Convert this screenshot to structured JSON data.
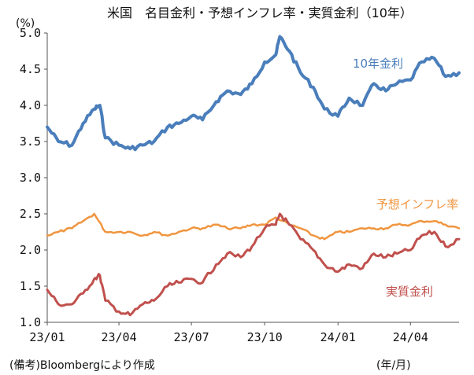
{
  "chart_data": {
    "type": "line",
    "title": "米国　名目金利・予想インフレ率・実質金利（10年）",
    "y_unit": "(%)",
    "x_unit": "(年/月)",
    "note": "(備考)Bloombergにより作成",
    "ylim": [
      1.0,
      5.0
    ],
    "y_ticks": [
      "1.0",
      "1.5",
      "2.0",
      "2.5",
      "3.0",
      "3.5",
      "4.0",
      "4.5",
      "5.0"
    ],
    "x_ticks": [
      "23/01",
      "23/04",
      "23/07",
      "23/10",
      "24/01",
      "24/04"
    ],
    "x_range_months": [
      "2023-01",
      "2024-06"
    ],
    "grid": false,
    "series": [
      {
        "name": "10年金利",
        "color": "#4a7ebb",
        "points": [
          [
            "2023-01-01",
            3.7
          ],
          [
            "2023-01-15",
            3.5
          ],
          [
            "2023-02-01",
            3.45
          ],
          [
            "2023-02-15",
            3.75
          ],
          [
            "2023-03-01",
            3.95
          ],
          [
            "2023-03-08",
            4.0
          ],
          [
            "2023-03-15",
            3.55
          ],
          [
            "2023-04-01",
            3.45
          ],
          [
            "2023-04-15",
            3.4
          ],
          [
            "2023-05-01",
            3.45
          ],
          [
            "2023-05-15",
            3.5
          ],
          [
            "2023-06-01",
            3.7
          ],
          [
            "2023-06-15",
            3.75
          ],
          [
            "2023-07-01",
            3.85
          ],
          [
            "2023-07-15",
            3.8
          ],
          [
            "2023-08-01",
            4.05
          ],
          [
            "2023-08-15",
            4.2
          ],
          [
            "2023-09-01",
            4.15
          ],
          [
            "2023-09-15",
            4.3
          ],
          [
            "2023-10-01",
            4.6
          ],
          [
            "2023-10-15",
            4.7
          ],
          [
            "2023-10-20",
            4.95
          ],
          [
            "2023-11-01",
            4.75
          ],
          [
            "2023-11-15",
            4.45
          ],
          [
            "2023-12-01",
            4.25
          ],
          [
            "2023-12-15",
            3.95
          ],
          [
            "2024-01-01",
            3.85
          ],
          [
            "2024-01-15",
            4.1
          ],
          [
            "2024-02-01",
            4.0
          ],
          [
            "2024-02-15",
            4.3
          ],
          [
            "2024-03-01",
            4.2
          ],
          [
            "2024-03-15",
            4.3
          ],
          [
            "2024-04-01",
            4.35
          ],
          [
            "2024-04-15",
            4.6
          ],
          [
            "2024-05-01",
            4.65
          ],
          [
            "2024-05-15",
            4.4
          ],
          [
            "2024-06-01",
            4.45
          ]
        ]
      },
      {
        "name": "予想インフレ率",
        "color": "#f0953f",
        "points": [
          [
            "2023-01-01",
            2.2
          ],
          [
            "2023-01-15",
            2.25
          ],
          [
            "2023-02-01",
            2.3
          ],
          [
            "2023-02-15",
            2.4
          ],
          [
            "2023-03-01",
            2.5
          ],
          [
            "2023-03-15",
            2.25
          ],
          [
            "2023-04-01",
            2.25
          ],
          [
            "2023-04-15",
            2.25
          ],
          [
            "2023-05-01",
            2.2
          ],
          [
            "2023-05-15",
            2.25
          ],
          [
            "2023-06-01",
            2.2
          ],
          [
            "2023-06-15",
            2.25
          ],
          [
            "2023-07-01",
            2.3
          ],
          [
            "2023-07-15",
            2.3
          ],
          [
            "2023-08-01",
            2.35
          ],
          [
            "2023-08-15",
            2.3
          ],
          [
            "2023-09-01",
            2.3
          ],
          [
            "2023-09-15",
            2.35
          ],
          [
            "2023-10-01",
            2.35
          ],
          [
            "2023-10-15",
            2.45
          ],
          [
            "2023-11-01",
            2.35
          ],
          [
            "2023-11-15",
            2.3
          ],
          [
            "2023-12-01",
            2.2
          ],
          [
            "2023-12-15",
            2.15
          ],
          [
            "2024-01-01",
            2.25
          ],
          [
            "2024-01-15",
            2.25
          ],
          [
            "2024-02-01",
            2.3
          ],
          [
            "2024-02-15",
            2.3
          ],
          [
            "2024-03-01",
            2.3
          ],
          [
            "2024-03-15",
            2.35
          ],
          [
            "2024-04-01",
            2.35
          ],
          [
            "2024-04-15",
            2.4
          ],
          [
            "2024-05-01",
            2.4
          ],
          [
            "2024-05-15",
            2.35
          ],
          [
            "2024-06-01",
            2.3
          ]
        ]
      },
      {
        "name": "実質金利",
        "color": "#c0504d",
        "points": [
          [
            "2023-01-01",
            1.45
          ],
          [
            "2023-01-15",
            1.25
          ],
          [
            "2023-02-01",
            1.25
          ],
          [
            "2023-02-15",
            1.4
          ],
          [
            "2023-03-01",
            1.6
          ],
          [
            "2023-03-08",
            1.65
          ],
          [
            "2023-03-15",
            1.3
          ],
          [
            "2023-04-01",
            1.15
          ],
          [
            "2023-04-15",
            1.1
          ],
          [
            "2023-05-01",
            1.25
          ],
          [
            "2023-05-15",
            1.3
          ],
          [
            "2023-06-01",
            1.5
          ],
          [
            "2023-06-15",
            1.55
          ],
          [
            "2023-07-01",
            1.6
          ],
          [
            "2023-07-15",
            1.55
          ],
          [
            "2023-08-01",
            1.8
          ],
          [
            "2023-08-15",
            1.95
          ],
          [
            "2023-09-01",
            1.9
          ],
          [
            "2023-09-15",
            2.05
          ],
          [
            "2023-10-01",
            2.3
          ],
          [
            "2023-10-15",
            2.35
          ],
          [
            "2023-10-20",
            2.5
          ],
          [
            "2023-11-01",
            2.35
          ],
          [
            "2023-11-15",
            2.15
          ],
          [
            "2023-12-01",
            2.0
          ],
          [
            "2023-12-15",
            1.8
          ],
          [
            "2024-01-01",
            1.7
          ],
          [
            "2024-01-15",
            1.8
          ],
          [
            "2024-02-01",
            1.75
          ],
          [
            "2024-02-15",
            1.95
          ],
          [
            "2024-03-01",
            1.9
          ],
          [
            "2024-03-15",
            1.95
          ],
          [
            "2024-04-01",
            2.0
          ],
          [
            "2024-04-15",
            2.2
          ],
          [
            "2024-05-01",
            2.25
          ],
          [
            "2024-05-15",
            2.05
          ],
          [
            "2024-06-01",
            2.15
          ]
        ]
      }
    ]
  }
}
